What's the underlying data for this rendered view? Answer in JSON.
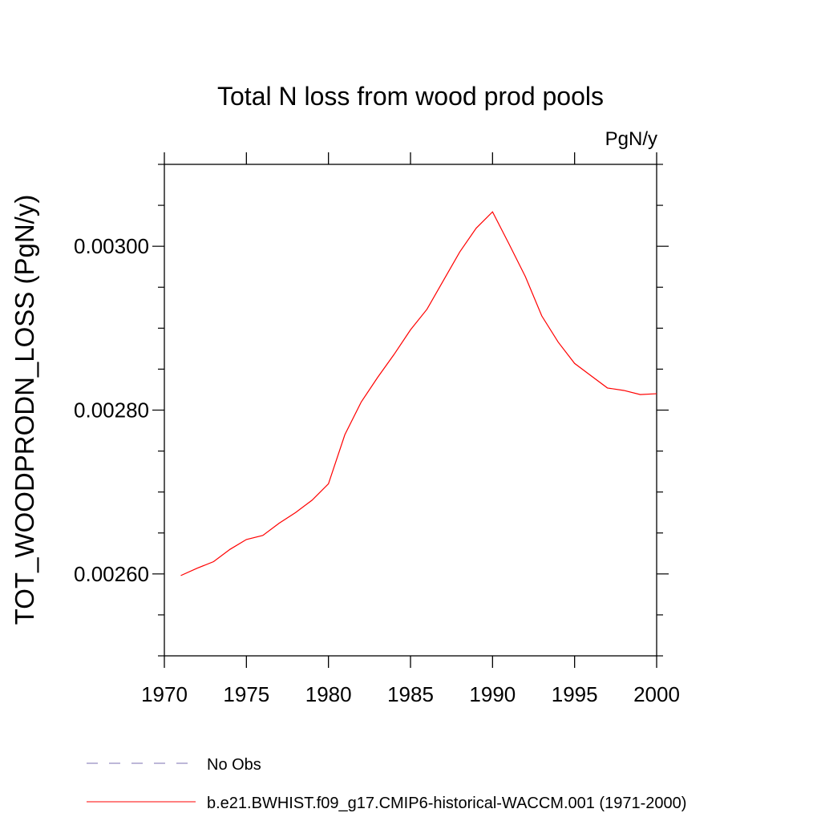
{
  "chart_data": {
    "type": "line",
    "title": "Total N loss from wood prod pools",
    "units_label": "PgN/y",
    "ylabel": "TOT_WOODPRODN_LOSS  (PgN/y)",
    "xlabel": "",
    "xlim": [
      1970,
      2000
    ],
    "ylim": [
      0.0025,
      0.0031
    ],
    "x_ticks": [
      1970,
      1975,
      1980,
      1985,
      1990,
      1995,
      2000
    ],
    "x_tick_labels": [
      "1970",
      "1975",
      "1980",
      "1985",
      "1990",
      "1995",
      "2000"
    ],
    "y_ticks": [
      0.0026,
      0.0028,
      0.003
    ],
    "y_tick_labels": [
      "0.00260",
      "0.00280",
      "0.00300"
    ],
    "y_minor_step": 5e-05,
    "x_minor_step": 1,
    "grid": false,
    "legend_position": "bottom",
    "series": [
      {
        "name": "No Obs",
        "style": "dashed",
        "color": "#7b6fb0",
        "x": [],
        "y": []
      },
      {
        "name": "b.e21.BWHIST.f09_g17.CMIP6-historical-WACCM.001 (1971-2000)",
        "style": "solid",
        "color": "#ff0000",
        "x": [
          1971,
          1972,
          1973,
          1974,
          1975,
          1976,
          1977,
          1978,
          1979,
          1980,
          1981,
          1982,
          1983,
          1984,
          1985,
          1986,
          1987,
          1988,
          1989,
          1990,
          1991,
          1992,
          1993,
          1994,
          1995,
          1996,
          1997,
          1998,
          1999,
          2000
        ],
        "y": [
          0.002598,
          0.002607,
          0.002615,
          0.00263,
          0.002642,
          0.002647,
          0.002662,
          0.002675,
          0.00269,
          0.00271,
          0.00277,
          0.00281,
          0.00284,
          0.002868,
          0.002898,
          0.002923,
          0.002958,
          0.002993,
          0.003022,
          0.003042,
          0.003003,
          0.002963,
          0.002915,
          0.002883,
          0.002857,
          0.002842,
          0.002827,
          0.002824,
          0.002819,
          0.00282
        ]
      }
    ]
  }
}
